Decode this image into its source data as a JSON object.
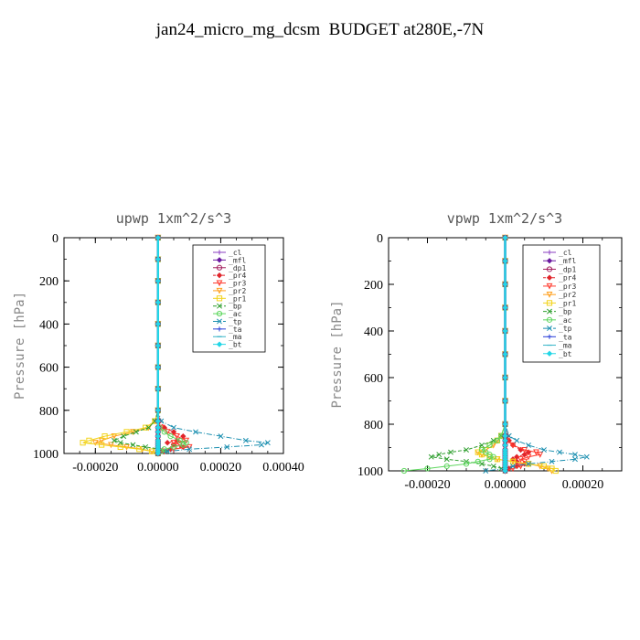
{
  "page": {
    "title": "jan24_micro_mg_dcsm  BUDGET at280E,-7N"
  },
  "legend": {
    "entries": [
      {
        "label": "_cl",
        "color": "#8a3ec2",
        "dash": "",
        "marker": "plus"
      },
      {
        "label": "_mfl",
        "color": "#6a1aa0",
        "dash": "",
        "marker": "diamond"
      },
      {
        "label": "_dp1",
        "color": "#a31f5e",
        "dash": "",
        "marker": "circle"
      },
      {
        "label": "_pr4",
        "color": "#e0242a",
        "dash": "3,2",
        "marker": "diamond"
      },
      {
        "label": "_pr3",
        "color": "#ff3b2f",
        "dash": "",
        "marker": "triangle"
      },
      {
        "label": "_pr2",
        "color": "#ff9f1c",
        "dash": "",
        "marker": "triangle"
      },
      {
        "label": "_pr1",
        "color": "#f2d31b",
        "dash": "",
        "marker": "square"
      },
      {
        "label": "_bp",
        "color": "#2e9e2e",
        "dash": "4,2",
        "marker": "x"
      },
      {
        "label": "_ac",
        "color": "#5ed65e",
        "dash": "",
        "marker": "circle"
      },
      {
        "label": "_tp",
        "color": "#1b8fb0",
        "dash": "6,2,1,2",
        "marker": "x"
      },
      {
        "label": "_ta",
        "color": "#2a3fd9",
        "dash": "",
        "marker": "plus"
      },
      {
        "label": "_ma",
        "color": "#37b5c8",
        "dash": "",
        "marker": "dash"
      },
      {
        "label": "_bt",
        "color": "#22d6e6",
        "dash": "",
        "marker": "diamond"
      }
    ]
  },
  "chart_data": [
    {
      "type": "line",
      "title": "upwp  1xm^2/s^3",
      "xlabel": "",
      "ylabel": "Pressure [hPa]",
      "xlim": [
        -0.0003,
        0.0004
      ],
      "ylim": [
        1000,
        0
      ],
      "xticks": [
        -0.0002,
        0.0,
        0.0002,
        0.0004
      ],
      "xtick_labels": [
        "-0.00020",
        "0.00000",
        "0.00020",
        "0.00040"
      ],
      "yticks": [
        0,
        200,
        400,
        600,
        800,
        1000
      ],
      "ytick_labels": [
        "0",
        "200",
        "400",
        "600",
        "800",
        "1000"
      ],
      "y": [
        0,
        100,
        200,
        300,
        400,
        500,
        600,
        700,
        800,
        850,
        880,
        900,
        920,
        940,
        950,
        960,
        970,
        980,
        990,
        1000
      ],
      "series": [
        {
          "name": "_cl",
          "values": [
            0,
            0,
            0,
            0,
            0,
            0,
            0,
            0,
            0,
            0,
            0,
            0,
            0,
            0,
            0,
            0,
            0,
            0,
            0,
            0
          ]
        },
        {
          "name": "_mfl",
          "values": [
            0,
            0,
            0,
            0,
            0,
            0,
            0,
            0,
            0,
            0,
            0,
            0,
            0,
            0,
            0,
            0,
            0,
            0,
            0,
            0
          ]
        },
        {
          "name": "_dp1",
          "values": [
            0,
            0,
            0,
            0,
            0,
            0,
            0,
            0,
            0,
            0,
            0,
            0,
            0,
            0,
            0,
            0,
            0,
            0,
            0,
            0
          ]
        },
        {
          "name": "_pr4",
          "values": [
            0,
            0,
            0,
            0,
            0,
            0,
            0,
            0,
            0,
            5e-06,
            2e-05,
            5e-05,
            8e-05,
            6e-05,
            3e-05,
            5e-05,
            8e-05,
            4e-05,
            1e-05,
            0
          ]
        },
        {
          "name": "_pr3",
          "values": [
            0,
            0,
            0,
            0,
            0,
            0,
            0,
            0,
            0,
            0,
            1e-05,
            3e-05,
            6e-05,
            9e-05,
            5e-05,
            7e-05,
            0.0001,
            5e-05,
            2e-05,
            0
          ]
        },
        {
          "name": "_pr2",
          "values": [
            0,
            0,
            0,
            0,
            0,
            0,
            0,
            0,
            0,
            -1e-05,
            -3e-05,
            -8e-05,
            -0.00014,
            -0.00018,
            -0.0002,
            -0.00015,
            -0.0001,
            -5e-05,
            -2e-05,
            0
          ]
        },
        {
          "name": "_pr1",
          "values": [
            0,
            0,
            0,
            0,
            0,
            0,
            0,
            0,
            0,
            -1e-05,
            -4e-05,
            -0.0001,
            -0.00017,
            -0.00022,
            -0.00024,
            -0.00018,
            -0.00012,
            -6e-05,
            -2e-05,
            0
          ]
        },
        {
          "name": "_bp",
          "values": [
            0,
            0,
            0,
            0,
            0,
            0,
            0,
            0,
            0,
            -1e-05,
            -3e-05,
            -7e-05,
            -0.00011,
            -0.00014,
            -0.00012,
            -8e-05,
            -4e-05,
            1e-05,
            3e-05,
            0
          ]
        },
        {
          "name": "_ac",
          "values": [
            0,
            0,
            0,
            0,
            0,
            0,
            0,
            0,
            0,
            0,
            5e-06,
            2e-05,
            4e-05,
            7e-05,
            9e-05,
            8e-05,
            5e-05,
            2e-05,
            1e-05,
            0
          ]
        },
        {
          "name": "_tp",
          "values": [
            0,
            0,
            0,
            0,
            0,
            0,
            0,
            0,
            0,
            1e-05,
            5e-05,
            0.00012,
            0.0002,
            0.00028,
            0.00035,
            0.00033,
            0.00022,
            0.0001,
            3e-05,
            0
          ]
        },
        {
          "name": "_ta",
          "values": [
            0,
            0,
            0,
            0,
            0,
            0,
            0,
            0,
            0,
            0,
            0,
            0,
            0,
            0,
            0,
            0,
            0,
            0,
            0,
            0
          ]
        },
        {
          "name": "_ma",
          "values": [
            0,
            0,
            0,
            0,
            0,
            0,
            0,
            0,
            0,
            0,
            0,
            0,
            0,
            0,
            0,
            0,
            0,
            0,
            0,
            0
          ]
        },
        {
          "name": "_bt",
          "values": [
            0,
            0,
            0,
            0,
            0,
            0,
            0,
            0,
            0,
            0,
            0,
            0,
            0,
            0,
            0,
            0,
            0,
            0,
            0,
            0
          ]
        }
      ]
    },
    {
      "type": "line",
      "title": "vpwp  1xm^2/s^3",
      "xlabel": "",
      "ylabel": "Pressure [hPa]",
      "xlim": [
        -0.0003,
        0.0003
      ],
      "ylim": [
        1000,
        0
      ],
      "xticks": [
        -0.0002,
        0.0,
        0.0002
      ],
      "xtick_labels": [
        "-0.00020",
        "0.00000",
        "0.00020"
      ],
      "yticks": [
        0,
        200,
        400,
        600,
        800,
        1000
      ],
      "ytick_labels": [
        "0",
        "200",
        "400",
        "600",
        "800",
        "1000"
      ],
      "y": [
        0,
        100,
        200,
        300,
        400,
        500,
        600,
        700,
        800,
        850,
        870,
        890,
        910,
        920,
        930,
        940,
        950,
        960,
        970,
        980,
        990,
        1000
      ],
      "series": [
        {
          "name": "_cl",
          "values": [
            0,
            0,
            0,
            0,
            0,
            0,
            0,
            0,
            0,
            0,
            0,
            0,
            0,
            0,
            0,
            0,
            0,
            0,
            0,
            0,
            0,
            0
          ]
        },
        {
          "name": "_mfl",
          "values": [
            0,
            0,
            0,
            0,
            0,
            0,
            0,
            0,
            0,
            0,
            0,
            0,
            0,
            0,
            0,
            0,
            0,
            0,
            0,
            0,
            0,
            0
          ]
        },
        {
          "name": "_dp1",
          "values": [
            0,
            0,
            0,
            0,
            0,
            0,
            0,
            0,
            0,
            0,
            0,
            0,
            0,
            0,
            0,
            0,
            0,
            0,
            0,
            0,
            0,
            0
          ]
        },
        {
          "name": "_pr4",
          "values": [
            0,
            0,
            0,
            0,
            0,
            0,
            0,
            0,
            0,
            5e-06,
            1e-05,
            2e-05,
            4e-05,
            6e-05,
            5e-05,
            3e-05,
            2e-05,
            3e-05,
            5e-05,
            3e-05,
            1e-05,
            0
          ]
        },
        {
          "name": "_pr3",
          "values": [
            0,
            0,
            0,
            0,
            0,
            0,
            0,
            0,
            0,
            0,
            5e-06,
            2e-05,
            5e-05,
            8e-05,
            9e-05,
            6e-05,
            4e-05,
            5e-05,
            6e-05,
            4e-05,
            2e-05,
            0
          ]
        },
        {
          "name": "_pr2",
          "values": [
            0,
            0,
            0,
            0,
            0,
            0,
            0,
            0,
            0,
            -1e-05,
            -2e-05,
            -3e-05,
            -5e-05,
            -7e-05,
            -6e-05,
            -4e-05,
            -2e-05,
            2e-05,
            6e-05,
            9e-05,
            0.00011,
            0.00012
          ]
        },
        {
          "name": "_pr1",
          "values": [
            0,
            0,
            0,
            0,
            0,
            0,
            0,
            0,
            0,
            -1e-05,
            -2e-05,
            -4e-05,
            -6e-05,
            -7e-05,
            -6e-05,
            -4e-05,
            -2e-05,
            2e-05,
            6e-05,
            0.0001,
            0.00012,
            0.00013
          ]
        },
        {
          "name": "_bp",
          "values": [
            0,
            0,
            0,
            0,
            0,
            0,
            0,
            0,
            0,
            -1e-05,
            -3e-05,
            -6e-05,
            -0.0001,
            -0.00014,
            -0.00017,
            -0.00019,
            -0.00015,
            -0.0001,
            -6e-05,
            -3e-05,
            -1e-05,
            0
          ]
        },
        {
          "name": "_ac",
          "values": [
            0,
            0,
            0,
            0,
            0,
            0,
            0,
            0,
            0,
            -1e-05,
            -2e-05,
            -4e-05,
            -6e-05,
            -5e-05,
            -4e-05,
            -3e-05,
            -4e-05,
            -7e-05,
            -0.0001,
            -0.00015,
            -0.0002,
            -0.00026
          ]
        },
        {
          "name": "_tp",
          "values": [
            0,
            0,
            0,
            0,
            0,
            0,
            0,
            0,
            0,
            1e-05,
            3e-05,
            6e-05,
            0.0001,
            0.00014,
            0.00018,
            0.00021,
            0.00018,
            0.00012,
            6e-05,
            2e-05,
            0,
            -5e-05
          ]
        },
        {
          "name": "_ta",
          "values": [
            0,
            0,
            0,
            0,
            0,
            0,
            0,
            0,
            0,
            0,
            0,
            0,
            0,
            0,
            0,
            0,
            0,
            0,
            0,
            0,
            0,
            0
          ]
        },
        {
          "name": "_ma",
          "values": [
            0,
            0,
            0,
            0,
            0,
            0,
            0,
            0,
            0,
            0,
            0,
            0,
            0,
            0,
            0,
            0,
            0,
            0,
            0,
            0,
            0,
            0
          ]
        },
        {
          "name": "_bt",
          "values": [
            0,
            0,
            0,
            0,
            0,
            0,
            0,
            0,
            0,
            0,
            0,
            0,
            0,
            0,
            0,
            0,
            0,
            0,
            0,
            0,
            0,
            0
          ]
        }
      ]
    }
  ]
}
